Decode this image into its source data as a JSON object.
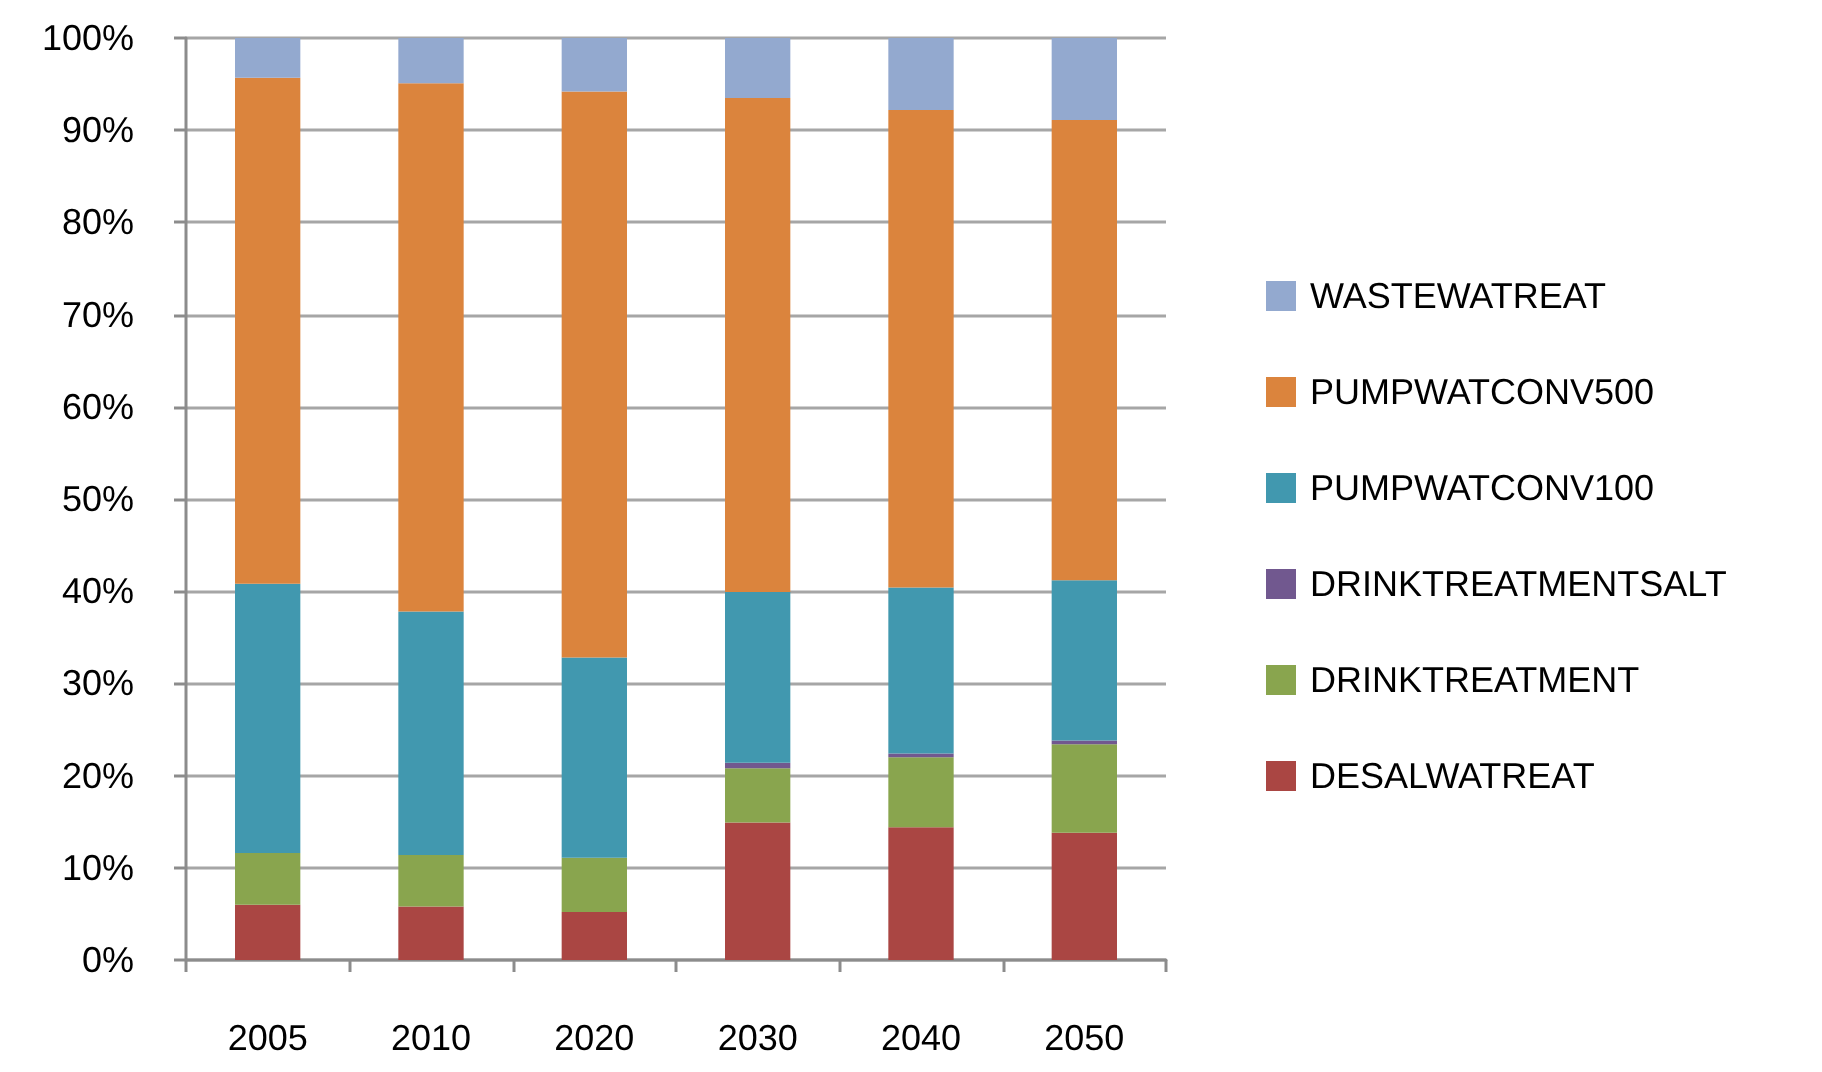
{
  "chart_data": {
    "type": "bar",
    "stacked": true,
    "categories": [
      "2005",
      "2010",
      "2020",
      "2030",
      "2040",
      "2050"
    ],
    "series": [
      {
        "name": "DESALWATREAT",
        "color": "#aa4643",
        "values": [
          6.0,
          5.8,
          5.2,
          14.9,
          14.4,
          13.8
        ]
      },
      {
        "name": "DRINKTREATMENT",
        "color": "#89a54e",
        "values": [
          5.6,
          5.6,
          5.9,
          5.9,
          7.6,
          9.6
        ]
      },
      {
        "name": "DRINKTREATMENTSALT",
        "color": "#71588f",
        "values": [
          0,
          0,
          0,
          0.6,
          0.4,
          0.4
        ]
      },
      {
        "name": "PUMPWATCONV100",
        "color": "#4198af",
        "values": [
          29.2,
          26.4,
          21.7,
          18.5,
          18.0,
          17.4
        ]
      },
      {
        "name": "PUMPWATCONV500",
        "color": "#db843d",
        "values": [
          54.9,
          57.3,
          61.4,
          53.6,
          51.8,
          49.9
        ]
      },
      {
        "name": "WASTEWATREAT",
        "color": "#93a9cf",
        "values": [
          4.3,
          4.9,
          5.8,
          6.5,
          7.8,
          8.9
        ]
      }
    ],
    "ylim": [
      0,
      100
    ],
    "yticks": [
      {
        "value": 0,
        "label": "0%"
      },
      {
        "value": 10,
        "label": "10%"
      },
      {
        "value": 20,
        "label": "20%"
      },
      {
        "value": 30,
        "label": "30%"
      },
      {
        "value": 40,
        "label": "40%"
      },
      {
        "value": 50,
        "label": "50%"
      },
      {
        "value": 60,
        "label": "60%"
      },
      {
        "value": 70,
        "label": "70%"
      },
      {
        "value": 80,
        "label": "80%"
      },
      {
        "value": 90,
        "label": "90%"
      },
      {
        "value": 100,
        "label": "100%"
      }
    ],
    "grid": "y",
    "legend": "right"
  }
}
